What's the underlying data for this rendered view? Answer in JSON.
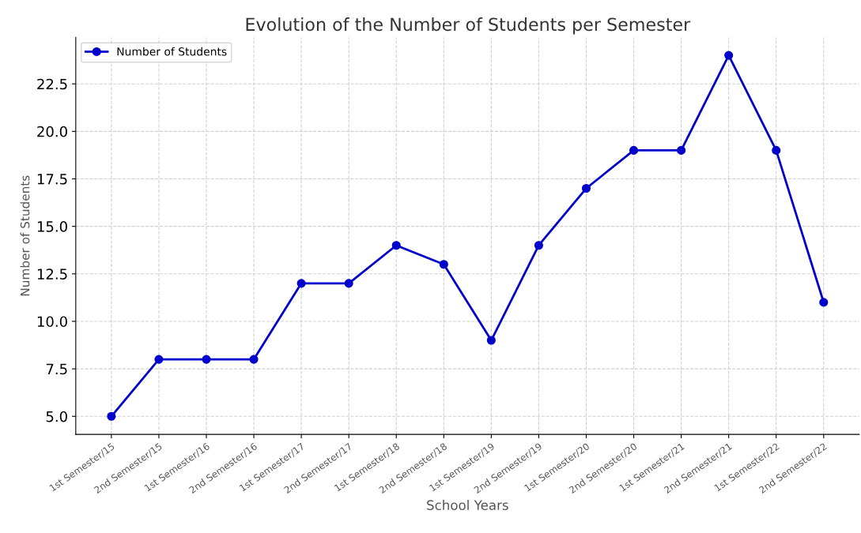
{
  "chart_data": {
    "type": "line",
    "title": "Evolution of the Number of Students per Semester",
    "xlabel": "School Years",
    "ylabel": "Number of Students",
    "categories": [
      "1st Semester/15",
      "2nd Semester/15",
      "1st Semester/16",
      "2nd Semester/16",
      "1st Semester/17",
      "2nd Semester/17",
      "1st Semester/18",
      "2nd Semester/18",
      "1st Semester/19",
      "2nd Semester/19",
      "1st Semester/20",
      "2nd Semester/20",
      "1st Semester/21",
      "2nd Semester/21",
      "1st Semester/22",
      "2nd Semester/22"
    ],
    "series": [
      {
        "name": "Number of Students",
        "color": "#0000cc",
        "values": [
          5,
          8,
          8,
          8,
          12,
          12,
          14,
          13,
          9,
          14,
          17,
          19,
          19,
          24,
          19,
          11
        ]
      }
    ],
    "ylim": [
      4.05,
      24.95
    ],
    "yticks": [
      {
        "value": 5,
        "label": "5.0"
      },
      7.5,
      {
        "value": 10,
        "label": "10.0"
      },
      12.5,
      {
        "value": 15,
        "label": "15.0"
      },
      17.5,
      {
        "value": 20,
        "label": "20.0"
      },
      22.5
    ],
    "grid": true,
    "legend": "top left",
    "marker": "circle",
    "line_style": "solid"
  }
}
